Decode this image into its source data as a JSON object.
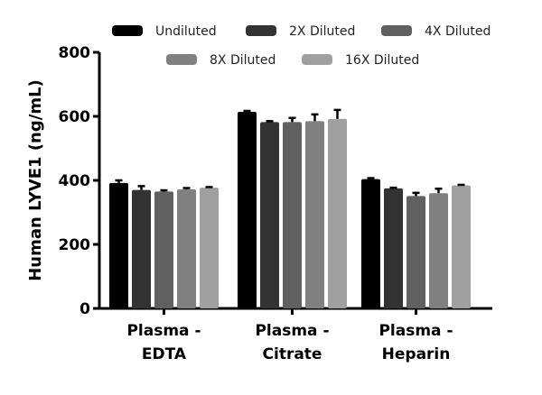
{
  "chart_data": {
    "type": "bar",
    "title": "",
    "xlabel": "",
    "ylabel": "Human LYVE1 (ng/mL)",
    "ylim": [
      0,
      800
    ],
    "yticks": [
      0,
      200,
      400,
      600,
      800
    ],
    "grid": false,
    "legend_position": "top",
    "categories": [
      [
        "Plasma -",
        "EDTA"
      ],
      [
        "Plasma -",
        "Citrate"
      ],
      [
        "Plasma -",
        "Heparin"
      ]
    ],
    "series": [
      {
        "name": "Undiluted",
        "color": "#000000",
        "values": [
          392,
          614,
          404
        ],
        "errors": [
          8,
          3,
          3
        ]
      },
      {
        "name": "2X Diluted",
        "color": "#333333",
        "values": [
          370,
          582,
          375
        ],
        "errors": [
          12,
          3,
          2
        ]
      },
      {
        "name": "4X Diluted",
        "color": "#606060",
        "values": [
          365,
          582,
          351
        ],
        "errors": [
          4,
          13,
          10
        ]
      },
      {
        "name": "8X Diluted",
        "color": "#808080",
        "values": [
          372,
          585,
          360
        ],
        "errors": [
          4,
          21,
          14
        ]
      },
      {
        "name": "16X Diluted",
        "color": "#a0a0a0",
        "values": [
          377,
          592,
          384
        ],
        "errors": [
          2,
          28,
          2
        ]
      }
    ]
  }
}
